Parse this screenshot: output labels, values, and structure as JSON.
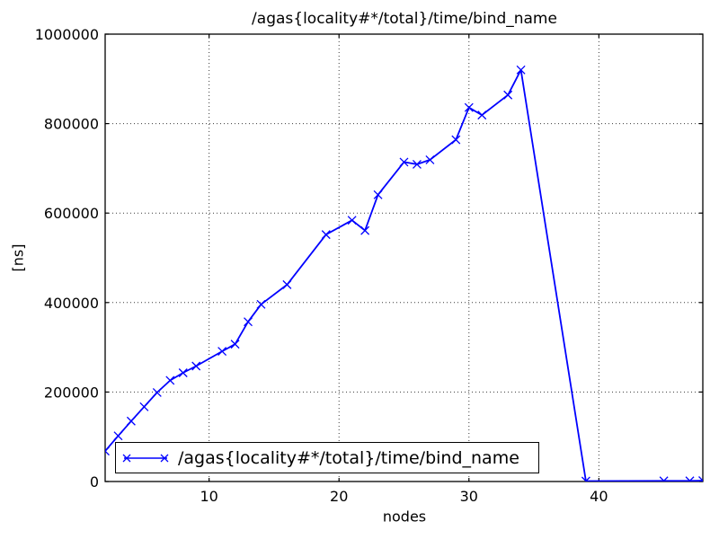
{
  "figure": {
    "title": "/agas{locality#*/total}/time/bind_name",
    "xlabel": "nodes",
    "ylabel": "[ns]"
  },
  "chart_data": {
    "type": "line",
    "title": "/agas{locality#*/total}/time/bind_name",
    "xlabel": "nodes",
    "ylabel": "[ns]",
    "xlim": [
      2,
      48
    ],
    "ylim": [
      0,
      1000000
    ],
    "xticks": [
      10,
      20,
      30,
      40
    ],
    "yticks": [
      0,
      200000,
      400000,
      600000,
      800000,
      1000000
    ],
    "grid": true,
    "legend": {
      "position": "lower left",
      "label": "/agas{locality#*/total}/time/bind_name"
    },
    "series": [
      {
        "name": "/agas{locality#*/total}/time/bind_name",
        "color": "#0000ff",
        "marker": "x",
        "x": [
          2,
          3,
          4,
          5,
          6,
          7,
          8,
          9,
          11,
          12,
          13,
          14,
          16,
          19,
          21,
          22,
          23,
          25,
          26,
          27,
          29,
          30,
          31,
          33,
          34,
          39,
          45,
          47,
          48
        ],
        "y": [
          68000,
          102000,
          135000,
          167000,
          199000,
          226000,
          243000,
          258000,
          291000,
          307000,
          357000,
          396000,
          440000,
          552000,
          584000,
          561000,
          641000,
          714000,
          709000,
          719000,
          764000,
          836000,
          819000,
          864000,
          920000,
          1000,
          1500,
          1500,
          2000
        ]
      }
    ]
  }
}
